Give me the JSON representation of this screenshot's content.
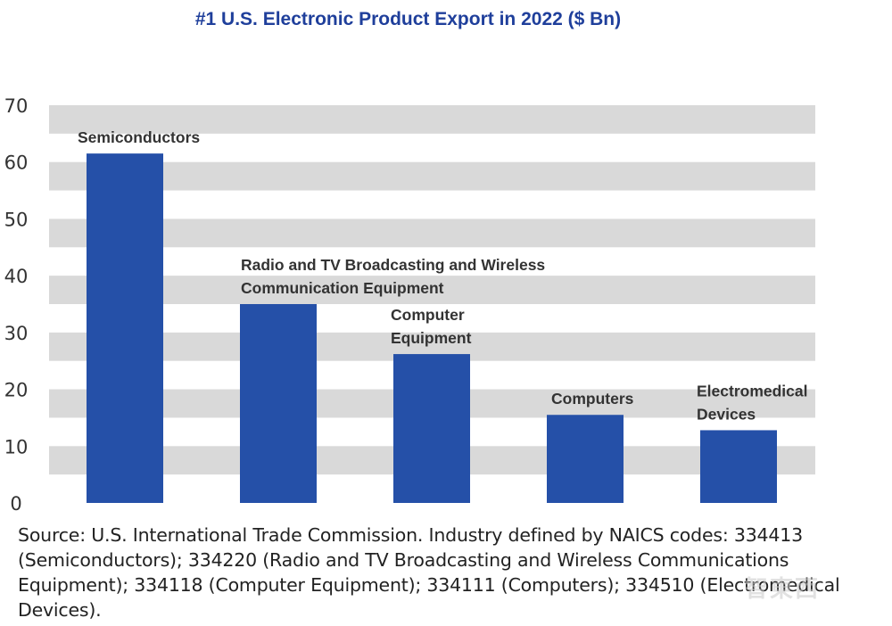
{
  "chart_data": {
    "type": "bar",
    "title": "#1 U.S. Electronic Product Export in 2022 ($ Bn)",
    "categories": [
      "Semiconductors",
      "Radio and TV Broadcasting and Wireless Communication Equipment",
      "Computer Equipment",
      "Computers",
      "Electromedical Devices"
    ],
    "category_label_lines": [
      [
        "Semiconductors"
      ],
      [
        "Radio and TV Broadcasting and Wireless",
        "Communication Equipment"
      ],
      [
        "Computer",
        "Equipment"
      ],
      [
        "Computers"
      ],
      [
        "Electromedical",
        "Devices"
      ]
    ],
    "values": [
      61.5,
      35,
      26.2,
      15.5,
      12.8
    ],
    "ylim": [
      0,
      70
    ],
    "yticks": [
      0,
      10,
      20,
      30,
      40,
      50,
      60,
      70
    ],
    "xlabel": "",
    "ylabel": "",
    "grid": "alternating horizontal bands",
    "legend": "none"
  },
  "colors": {
    "bar": "#2550a8",
    "band": "#d9d9d9",
    "title": "#1f3f9b",
    "text": "#333333"
  },
  "source_note": "Source: U.S. International Trade Commission. Industry defined by NAICS codes: 334413 (Semiconductors); 334220 (Radio and TV Broadcasting and Wireless Communications Equipment); 334118 (Computer Equipment); 334111 (Computers); 334510 (Electromedical Devices).",
  "watermark": "智東西"
}
